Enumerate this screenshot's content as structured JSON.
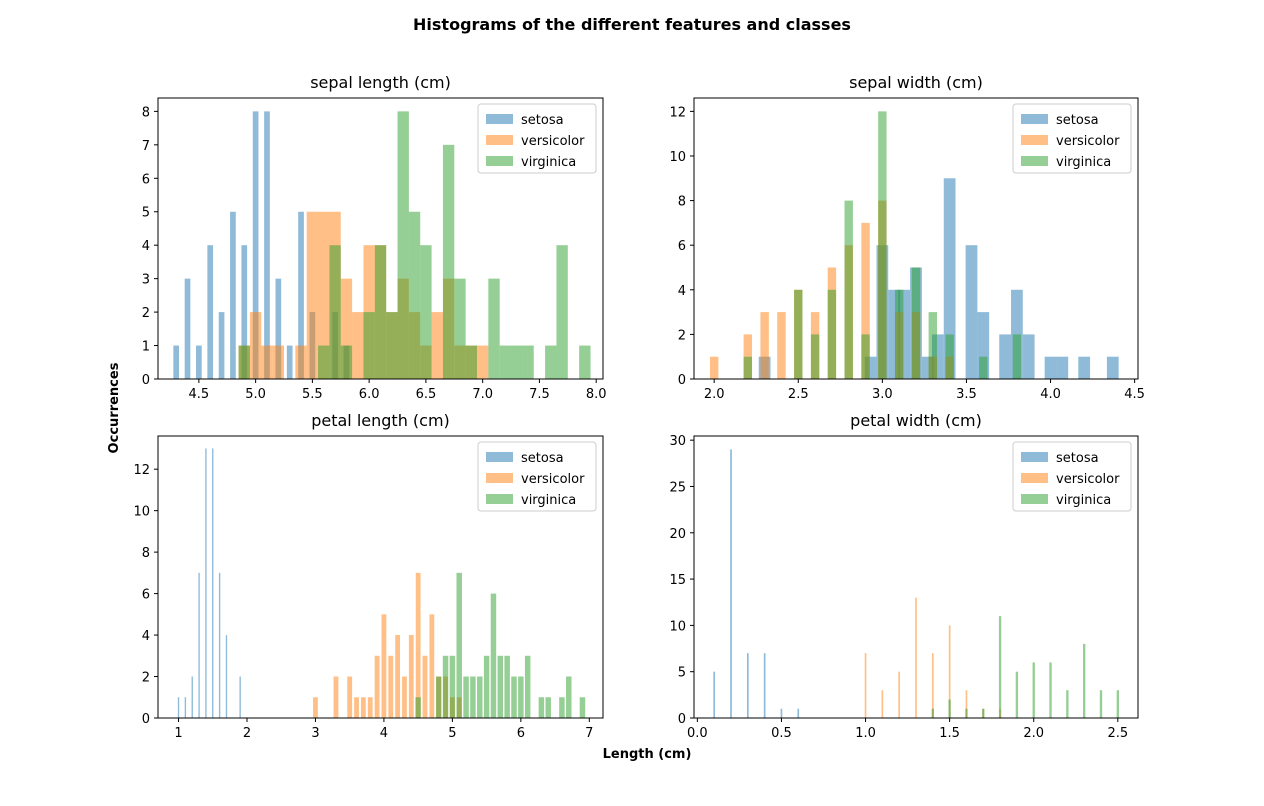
{
  "figure": {
    "suptitle": "Histograms of the different features and classes",
    "supxlabel": "Length (cm)",
    "supylabel": "Occurrences"
  },
  "colors": {
    "setosa": "#1f77b4",
    "versicolor": "#ff7f0e",
    "virginica": "#2ca02c"
  },
  "chart_data": [
    {
      "type": "bar",
      "title": "sepal length (cm)",
      "xlim": [
        4.14,
        8.06
      ],
      "ylim": [
        0,
        8.4
      ],
      "xticks": [
        "4.5",
        "5.0",
        "5.5",
        "6.0",
        "6.5",
        "7.0",
        "7.5",
        "8.0"
      ],
      "yticks": [
        "0",
        "1",
        "2",
        "3",
        "4",
        "5",
        "6",
        "7",
        "8"
      ],
      "legend_position": "upper right",
      "series": [
        {
          "name": "setosa",
          "bin_width": 0.05,
          "x": [
            4.3,
            4.4,
            4.5,
            4.6,
            4.7,
            4.8,
            4.9,
            5.0,
            5.1,
            5.2,
            5.3,
            5.4,
            5.5,
            5.7,
            5.8
          ],
          "values": [
            1,
            3,
            1,
            4,
            2,
            5,
            4,
            8,
            8,
            3,
            1,
            5,
            2,
            2,
            1
          ]
        },
        {
          "name": "versicolor",
          "bin_width": 0.1,
          "x": [
            4.9,
            5.0,
            5.1,
            5.2,
            5.4,
            5.5,
            5.6,
            5.7,
            5.8,
            5.9,
            6.0,
            6.1,
            6.2,
            6.3,
            6.4,
            6.5,
            6.6,
            6.7,
            6.8,
            6.9,
            7.0
          ],
          "values": [
            1,
            2,
            1,
            1,
            1,
            5,
            5,
            5,
            3,
            2,
            4,
            4,
            2,
            3,
            2,
            1,
            2,
            3,
            1,
            1,
            1
          ]
        },
        {
          "name": "virginica",
          "bin_width": 0.1,
          "x": [
            4.9,
            5.6,
            5.7,
            5.8,
            6.0,
            6.1,
            6.2,
            6.3,
            6.4,
            6.5,
            6.7,
            6.8,
            6.9,
            7.1,
            7.2,
            7.3,
            7.4,
            7.6,
            7.7,
            7.9
          ],
          "values": [
            1,
            1,
            4,
            1,
            2,
            4,
            2,
            8,
            5,
            4,
            7,
            3,
            1,
            3,
            1,
            1,
            1,
            1,
            4,
            1
          ]
        }
      ]
    },
    {
      "type": "bar",
      "title": "sepal width (cm)",
      "xlim": [
        1.88,
        4.52
      ],
      "ylim": [
        0,
        12.6
      ],
      "xticks": [
        "2.0",
        "2.5",
        "3.0",
        "3.5",
        "4.0",
        "4.5"
      ],
      "yticks": [
        "0",
        "2",
        "4",
        "6",
        "8",
        "10",
        "12"
      ],
      "legend_position": "upper right",
      "series": [
        {
          "name": "setosa",
          "bin_width": 0.07,
          "x": [
            2.3,
            2.93,
            3.0,
            3.07,
            3.13,
            3.2,
            3.27,
            3.33,
            3.4,
            3.53,
            3.6,
            3.73,
            3.8,
            3.87,
            4.0,
            4.07,
            4.2,
            4.37
          ],
          "values": [
            1,
            1,
            6,
            4,
            4,
            5,
            1,
            2,
            9,
            6,
            3,
            2,
            4,
            2,
            1,
            1,
            1,
            1
          ]
        },
        {
          "name": "versicolor",
          "bin_width": 0.05,
          "x": [
            2.0,
            2.2,
            2.3,
            2.4,
            2.5,
            2.6,
            2.7,
            2.8,
            2.9,
            3.0,
            3.1,
            3.2,
            3.3,
            3.4
          ],
          "values": [
            1,
            2,
            3,
            3,
            4,
            3,
            5,
            6,
            7,
            8,
            3,
            3,
            1,
            1
          ]
        },
        {
          "name": "virginica",
          "bin_width": 0.05,
          "x": [
            2.2,
            2.5,
            2.6,
            2.7,
            2.8,
            2.9,
            3.0,
            3.1,
            3.2,
            3.3,
            3.4,
            3.6,
            3.8
          ],
          "values": [
            1,
            4,
            2,
            4,
            8,
            2,
            12,
            4,
            5,
            3,
            2,
            1,
            2
          ]
        }
      ]
    },
    {
      "type": "bar",
      "title": "petal length (cm)",
      "xlim": [
        0.7,
        7.2
      ],
      "ylim": [
        0,
        13.6
      ],
      "xticks": [
        "1",
        "2",
        "3",
        "4",
        "5",
        "6",
        "7"
      ],
      "yticks": [
        "0",
        "2",
        "4",
        "6",
        "8",
        "10",
        "12"
      ],
      "legend_position": "upper right",
      "series": [
        {
          "name": "setosa",
          "bin_width": 0.02,
          "x": [
            1.0,
            1.1,
            1.2,
            1.3,
            1.4,
            1.5,
            1.6,
            1.7,
            1.9
          ],
          "values": [
            1,
            1,
            2,
            7,
            13,
            13,
            7,
            4,
            2
          ]
        },
        {
          "name": "versicolor",
          "bin_width": 0.07,
          "x": [
            3.0,
            3.3,
            3.5,
            3.6,
            3.7,
            3.8,
            3.9,
            4.0,
            4.1,
            4.2,
            4.3,
            4.4,
            4.5,
            4.6,
            4.7,
            4.8,
            4.9,
            5.0,
            5.1
          ],
          "values": [
            1,
            2,
            2,
            1,
            1,
            1,
            3,
            5,
            3,
            4,
            2,
            4,
            7,
            3,
            5,
            2,
            2,
            1,
            1
          ]
        },
        {
          "name": "virginica",
          "bin_width": 0.08,
          "x": [
            4.5,
            4.8,
            4.9,
            5.0,
            5.1,
            5.2,
            5.3,
            5.4,
            5.5,
            5.6,
            5.7,
            5.8,
            5.9,
            6.0,
            6.1,
            6.3,
            6.4,
            6.6,
            6.7,
            6.9
          ],
          "values": [
            1,
            2,
            3,
            3,
            7,
            2,
            2,
            2,
            3,
            6,
            3,
            3,
            2,
            2,
            3,
            1,
            1,
            1,
            2,
            1
          ]
        }
      ]
    },
    {
      "type": "bar",
      "title": "petal width (cm)",
      "xlim": [
        -0.02,
        2.62
      ],
      "ylim": [
        0,
        30.45
      ],
      "xticks": [
        "0.0",
        "0.5",
        "1.0",
        "1.5",
        "2.0",
        "2.5"
      ],
      "yticks": [
        "0",
        "5",
        "10",
        "15",
        "20",
        "25",
        "30"
      ],
      "legend_position": "upper right",
      "series": [
        {
          "name": "setosa",
          "bin_width": 0.01,
          "x": [
            0.1,
            0.2,
            0.3,
            0.4,
            0.5,
            0.6
          ],
          "values": [
            5,
            29,
            7,
            7,
            1,
            1
          ]
        },
        {
          "name": "versicolor",
          "bin_width": 0.01,
          "x": [
            1.0,
            1.1,
            1.2,
            1.3,
            1.4,
            1.5,
            1.6,
            1.7,
            1.8
          ],
          "values": [
            7,
            3,
            5,
            13,
            7,
            10,
            3,
            1,
            1
          ]
        },
        {
          "name": "virginica",
          "bin_width": 0.014,
          "x": [
            1.4,
            1.5,
            1.6,
            1.7,
            1.8,
            1.9,
            2.0,
            2.1,
            2.2,
            2.3,
            2.4,
            2.5
          ],
          "values": [
            1,
            2,
            1,
            1,
            11,
            5,
            6,
            6,
            3,
            8,
            3,
            3
          ]
        }
      ]
    }
  ]
}
